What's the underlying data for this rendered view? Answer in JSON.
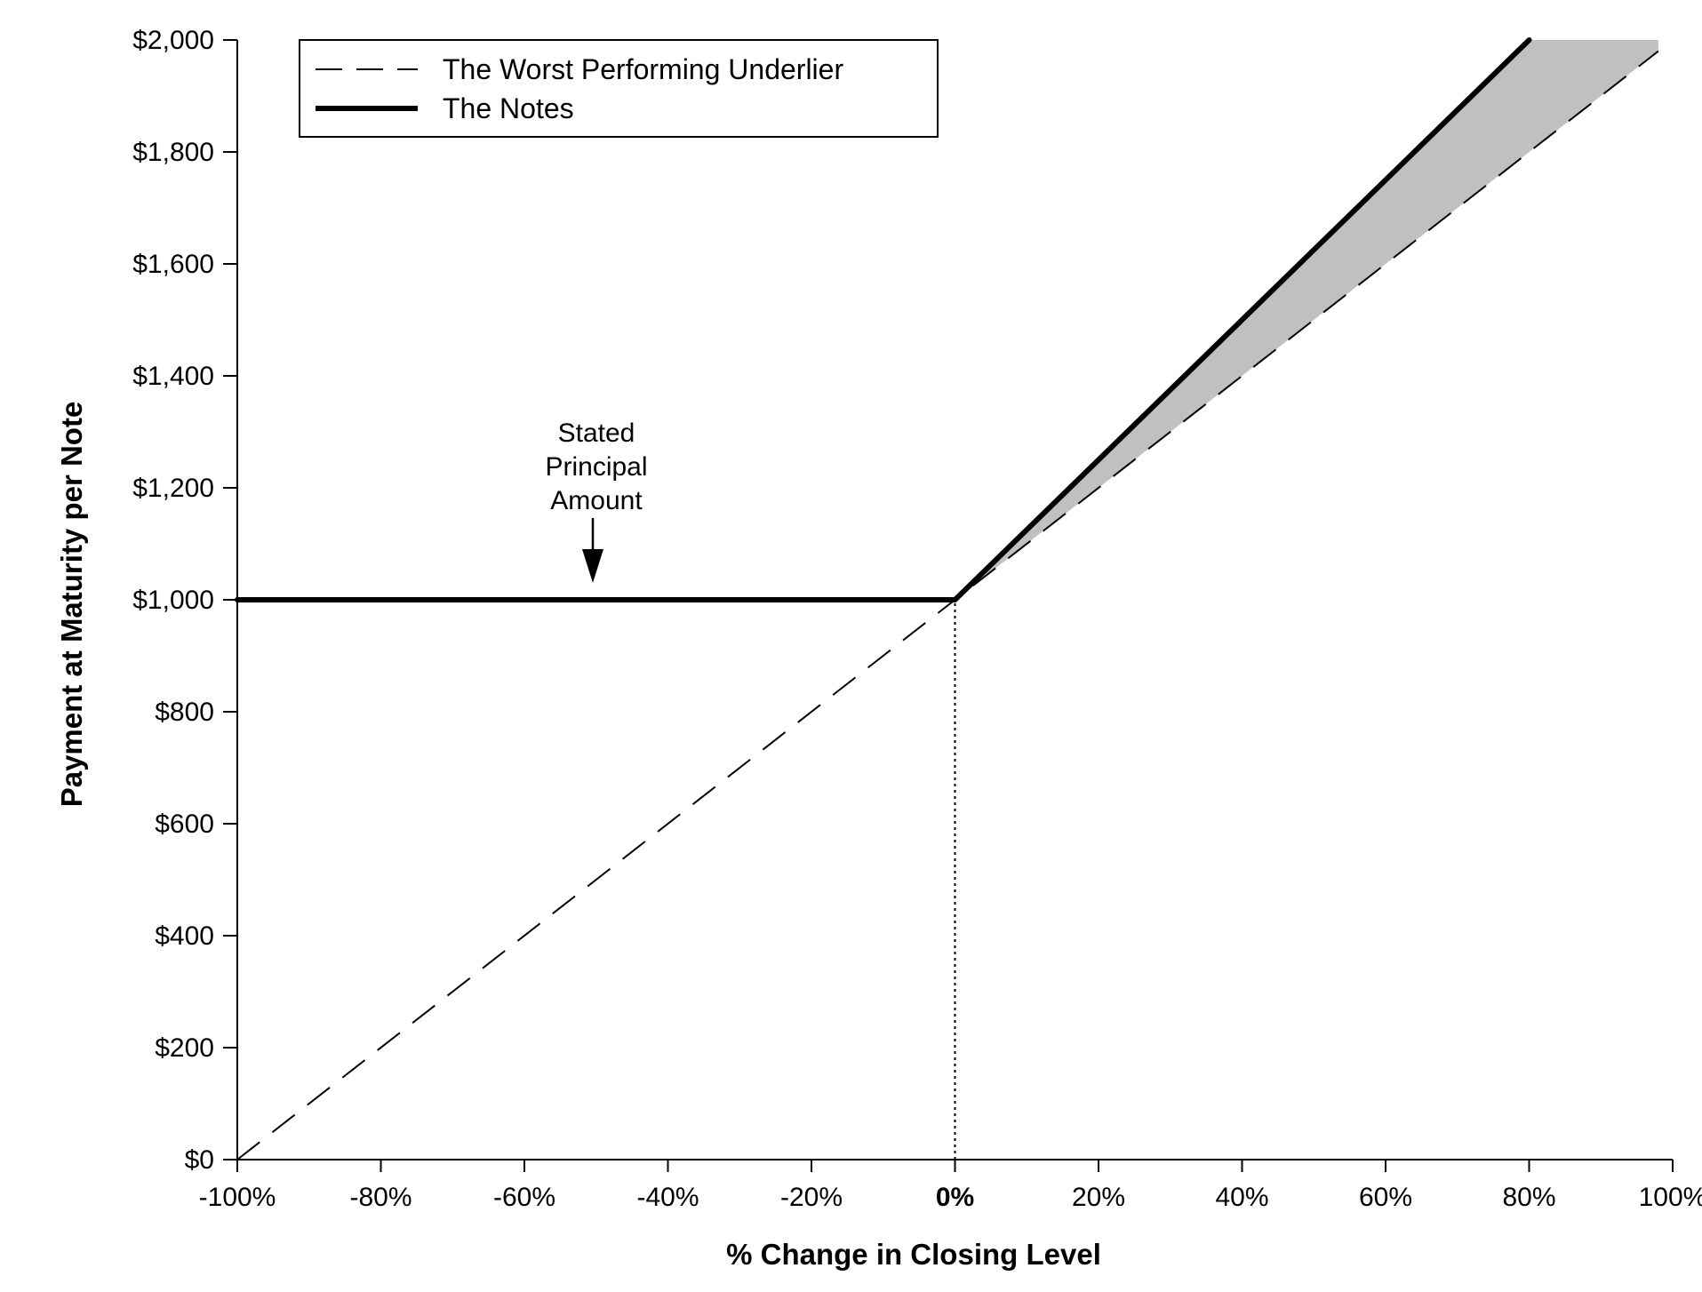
{
  "chart_data": {
    "type": "line",
    "title": "",
    "xlabel": "% Change in Closing Level",
    "ylabel": "Payment at Maturity per Note",
    "xlim": [
      -100,
      100
    ],
    "ylim": [
      0,
      2000
    ],
    "x_ticks": [
      -100,
      -80,
      -60,
      -40,
      -20,
      0,
      20,
      40,
      60,
      80,
      100
    ],
    "x_tick_labels": [
      "-100%",
      "-80%",
      "-60%",
      "-40%",
      "-20%",
      "0%",
      "20%",
      "40%",
      "60%",
      "80%",
      "100%"
    ],
    "y_ticks": [
      0,
      200,
      400,
      600,
      800,
      1000,
      1200,
      1400,
      1600,
      1800,
      2000
    ],
    "y_tick_labels": [
      "$0",
      "$200",
      "$400",
      "$600",
      "$800",
      "$1,000",
      "$1,200",
      "$1,400",
      "$1,600",
      "$1,800",
      "$2,000"
    ],
    "grid": false,
    "legend_position": "top-left",
    "series": [
      {
        "name": "The Worst Performing Underlier",
        "style": "dashed",
        "color": "#000000",
        "x": [
          -100,
          98
        ],
        "y": [
          0,
          1980
        ]
      },
      {
        "name": "The Notes",
        "style": "solid-thick",
        "color": "#000000",
        "x": [
          -100,
          0,
          80
        ],
        "y": [
          1000,
          1000,
          2000
        ]
      }
    ],
    "shaded_region": {
      "color": "#c0c0c0",
      "upper": {
        "x": [
          0,
          80,
          98
        ],
        "y": [
          1000,
          2000,
          2000
        ]
      },
      "lower": {
        "x": [
          0,
          98
        ],
        "y": [
          1000,
          1980
        ]
      }
    },
    "reference_line": {
      "x": 0,
      "y": [
        0,
        1000
      ],
      "style": "dotted"
    },
    "annotation": {
      "lines": [
        "Stated",
        "Principal",
        "Amount"
      ],
      "arrow_x": -50,
      "arrow_to_y": 1000
    }
  }
}
